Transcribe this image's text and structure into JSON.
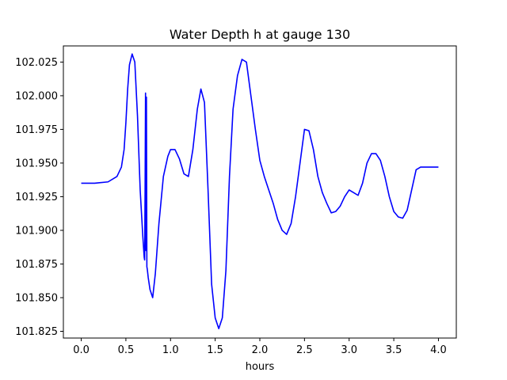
{
  "chart_data": {
    "type": "line",
    "title": "Water Depth h at gauge 130",
    "xlabel": "hours",
    "ylabel": "",
    "xlim": [
      -0.2,
      4.2
    ],
    "ylim": [
      101.82,
      102.037
    ],
    "xticks": [
      0.0,
      0.5,
      1.0,
      1.5,
      2.0,
      2.5,
      3.0,
      3.5,
      4.0
    ],
    "xtick_labels": [
      "0.0",
      "0.5",
      "1.0",
      "1.5",
      "2.0",
      "2.5",
      "3.0",
      "3.5",
      "4.0"
    ],
    "yticks": [
      101.825,
      101.85,
      101.875,
      101.9,
      101.925,
      101.95,
      101.975,
      102.0,
      102.025
    ],
    "ytick_labels": [
      "101.825",
      "101.850",
      "101.875",
      "101.900",
      "101.925",
      "101.950",
      "101.975",
      "102.000",
      "102.025"
    ],
    "grid": false,
    "legend": "none",
    "series": [
      {
        "color": "#0000ff",
        "x": [
          0.0,
          0.15,
          0.3,
          0.4,
          0.45,
          0.48,
          0.5,
          0.52,
          0.54,
          0.57,
          0.6,
          0.63,
          0.66,
          0.69,
          0.7,
          0.705,
          0.71,
          0.715,
          0.72,
          0.725,
          0.73,
          0.735,
          0.74,
          0.745,
          0.75,
          0.77,
          0.8,
          0.83,
          0.87,
          0.92,
          0.97,
          1.0,
          1.05,
          1.1,
          1.15,
          1.2,
          1.25,
          1.3,
          1.34,
          1.38,
          1.42,
          1.46,
          1.5,
          1.54,
          1.58,
          1.62,
          1.66,
          1.7,
          1.75,
          1.8,
          1.85,
          1.9,
          1.95,
          2.0,
          2.05,
          2.1,
          2.15,
          2.2,
          2.25,
          2.3,
          2.35,
          2.4,
          2.45,
          2.5,
          2.55,
          2.6,
          2.65,
          2.7,
          2.75,
          2.8,
          2.85,
          2.9,
          2.95,
          3.0,
          3.05,
          3.1,
          3.15,
          3.2,
          3.25,
          3.3,
          3.35,
          3.4,
          3.45,
          3.5,
          3.55,
          3.6,
          3.65,
          3.7,
          3.75,
          3.8,
          3.85,
          3.9,
          3.95,
          4.0
        ],
        "y": [
          101.935,
          101.935,
          101.936,
          101.94,
          101.947,
          101.96,
          101.98,
          102.005,
          102.023,
          102.031,
          102.025,
          101.985,
          101.93,
          101.895,
          101.885,
          101.88,
          101.878,
          101.93,
          102.002,
          101.885,
          101.999,
          101.873,
          101.871,
          101.868,
          101.865,
          101.856,
          101.85,
          101.868,
          101.905,
          101.94,
          101.955,
          101.96,
          101.96,
          101.953,
          101.942,
          101.94,
          101.96,
          101.99,
          102.005,
          101.995,
          101.93,
          101.86,
          101.835,
          101.827,
          101.835,
          101.87,
          101.94,
          101.99,
          102.015,
          102.027,
          102.025,
          102.0,
          101.975,
          101.952,
          101.94,
          101.93,
          101.92,
          101.908,
          101.9,
          101.897,
          101.905,
          101.925,
          101.95,
          101.975,
          101.974,
          101.96,
          101.94,
          101.928,
          101.92,
          101.913,
          101.914,
          101.918,
          101.925,
          101.93,
          101.928,
          101.926,
          101.935,
          101.95,
          101.957,
          101.957,
          101.952,
          101.94,
          101.925,
          101.914,
          101.91,
          101.909,
          101.915,
          101.93,
          101.945,
          101.947,
          101.947,
          101.947,
          101.947,
          101.947
        ],
        "x_override_tail": true
      }
    ]
  }
}
